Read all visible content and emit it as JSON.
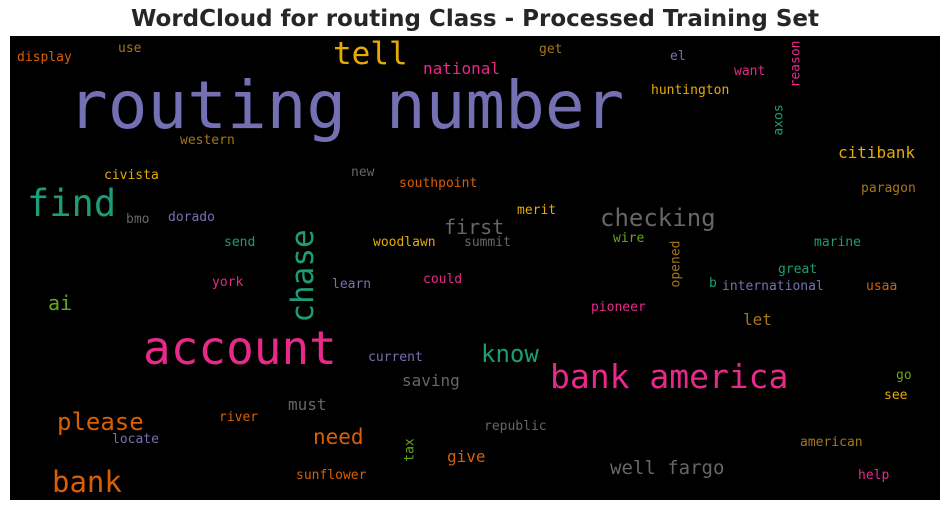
{
  "chart_data": {
    "type": "wordcloud",
    "title": "WordCloud for routing Class - Processed Training Set",
    "background": "#000000",
    "words": [
      {
        "text": "routing number",
        "color": "#7570b3"
      },
      {
        "text": "account",
        "color": "#e7298a"
      },
      {
        "text": "bank america",
        "color": "#e7298a"
      },
      {
        "text": "find",
        "color": "#1b9e77"
      },
      {
        "text": "tell",
        "color": "#e6ab02"
      },
      {
        "text": "chase",
        "color": "#1b9e77"
      },
      {
        "text": "checking",
        "color": "#666666"
      },
      {
        "text": "bank",
        "color": "#d95f02"
      },
      {
        "text": "please",
        "color": "#d95f02"
      },
      {
        "text": "know",
        "color": "#1b9e77"
      },
      {
        "text": "well fargo",
        "color": "#666666"
      },
      {
        "text": "need",
        "color": "#d95f02"
      },
      {
        "text": "first",
        "color": "#666666"
      },
      {
        "text": "ai",
        "color": "#66a61e"
      },
      {
        "text": "citibank",
        "color": "#e6ab02"
      },
      {
        "text": "national",
        "color": "#e7298a"
      },
      {
        "text": "saving",
        "color": "#666666"
      },
      {
        "text": "must",
        "color": "#666666"
      },
      {
        "text": "give",
        "color": "#d95f02"
      },
      {
        "text": "let",
        "color": "#a6761d"
      },
      {
        "text": "huntington",
        "color": "#e6ab02"
      },
      {
        "text": "display",
        "color": "#d95f02"
      },
      {
        "text": "use",
        "color": "#a6761d"
      },
      {
        "text": "get",
        "color": "#a6761d"
      },
      {
        "text": "el",
        "color": "#7570b3"
      },
      {
        "text": "want",
        "color": "#e7298a"
      },
      {
        "text": "reason",
        "color": "#e7298a"
      },
      {
        "text": "axos",
        "color": "#1b9e77"
      },
      {
        "text": "western",
        "color": "#a6761d"
      },
      {
        "text": "civista",
        "color": "#e6ab02"
      },
      {
        "text": "new",
        "color": "#666666"
      },
      {
        "text": "southpoint",
        "color": "#d95f02"
      },
      {
        "text": "paragon",
        "color": "#a6761d"
      },
      {
        "text": "bmo",
        "color": "#666666"
      },
      {
        "text": "dorado",
        "color": "#7570b3"
      },
      {
        "text": "merit",
        "color": "#e6ab02"
      },
      {
        "text": "send",
        "color": "#1b9e77"
      },
      {
        "text": "woodlawn",
        "color": "#e6ab02"
      },
      {
        "text": "summit",
        "color": "#666666"
      },
      {
        "text": "wire",
        "color": "#66a61e"
      },
      {
        "text": "opened",
        "color": "#a6761d"
      },
      {
        "text": "marine",
        "color": "#1b9e77"
      },
      {
        "text": "york",
        "color": "#e7298a"
      },
      {
        "text": "learn",
        "color": "#7570b3"
      },
      {
        "text": "could",
        "color": "#e7298a"
      },
      {
        "text": "great",
        "color": "#1b9e77"
      },
      {
        "text": "b",
        "color": "#1b9e77"
      },
      {
        "text": "international",
        "color": "#7570b3"
      },
      {
        "text": "usaa",
        "color": "#d95f02"
      },
      {
        "text": "pioneer",
        "color": "#e7298a"
      },
      {
        "text": "current",
        "color": "#7570b3"
      },
      {
        "text": "go",
        "color": "#66a61e"
      },
      {
        "text": "see",
        "color": "#e6ab02"
      },
      {
        "text": "river",
        "color": "#d95f02"
      },
      {
        "text": "republic",
        "color": "#666666"
      },
      {
        "text": "locate",
        "color": "#7570b3"
      },
      {
        "text": "tax",
        "color": "#66a61e"
      },
      {
        "text": "american",
        "color": "#a6761d"
      },
      {
        "text": "sunflower",
        "color": "#d95f02"
      },
      {
        "text": "help",
        "color": "#e7298a"
      }
    ]
  }
}
